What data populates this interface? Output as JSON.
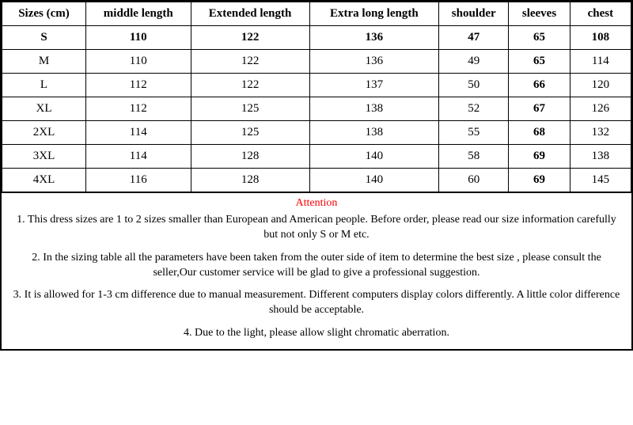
{
  "table": {
    "columns": [
      "Sizes (cm)",
      "middle length",
      "Extended length",
      "Extra long length",
      "shoulder",
      "sleeves",
      "chest"
    ],
    "rows": [
      {
        "size": "S",
        "middle": "110",
        "extended": "122",
        "extra": "136",
        "shoulder": "47",
        "sleeves": "65",
        "chest": "108",
        "bold": [
          true,
          true,
          true,
          true,
          true,
          true,
          true
        ]
      },
      {
        "size": "M",
        "middle": "110",
        "extended": "122",
        "extra": "136",
        "shoulder": "49",
        "sleeves": "65",
        "chest": "114",
        "bold": [
          false,
          false,
          false,
          false,
          false,
          true,
          false
        ]
      },
      {
        "size": "L",
        "middle": "112",
        "extended": "122",
        "extra": "137",
        "shoulder": "50",
        "sleeves": "66",
        "chest": "120",
        "bold": [
          false,
          false,
          false,
          false,
          false,
          true,
          false
        ]
      },
      {
        "size": "XL",
        "middle": "112",
        "extended": "125",
        "extra": "138",
        "shoulder": "52",
        "sleeves": "67",
        "chest": "126",
        "bold": [
          false,
          false,
          false,
          false,
          false,
          true,
          false
        ]
      },
      {
        "size": "2XL",
        "middle": "114",
        "extended": "125",
        "extra": "138",
        "shoulder": "55",
        "sleeves": "68",
        "chest": "132",
        "bold": [
          false,
          false,
          false,
          false,
          false,
          true,
          false
        ]
      },
      {
        "size": "3XL",
        "middle": "114",
        "extended": "128",
        "extra": "140",
        "shoulder": "58",
        "sleeves": "69",
        "chest": "138",
        "bold": [
          false,
          false,
          false,
          false,
          false,
          true,
          false
        ]
      },
      {
        "size": "4XL",
        "middle": "116",
        "extended": "128",
        "extra": "140",
        "shoulder": "60",
        "sleeves": "69",
        "chest": "145",
        "bold": [
          false,
          false,
          false,
          false,
          false,
          true,
          false
        ]
      }
    ],
    "header_fontsize": 15,
    "cell_fontsize": 15,
    "border_color": "#000000",
    "background_color": "#ffffff"
  },
  "attention": {
    "title": "Attention",
    "title_color": "#ff0000",
    "notes": [
      "1. This dress sizes are 1 to 2 sizes smaller than European and American people. Before order, please read our size information carefully but not only S or M etc.",
      "2. In the sizing table all the parameters have been taken from the outer side of item to determine the best size , please consult the seller,Our customer service will be glad to give a professional suggestion.",
      "3. It is allowed for 1-3 cm difference due to manual measurement. Different computers display colors differently. A little color difference should be acceptable.",
      "4. Due to the light, please allow slight chromatic aberration."
    ]
  }
}
